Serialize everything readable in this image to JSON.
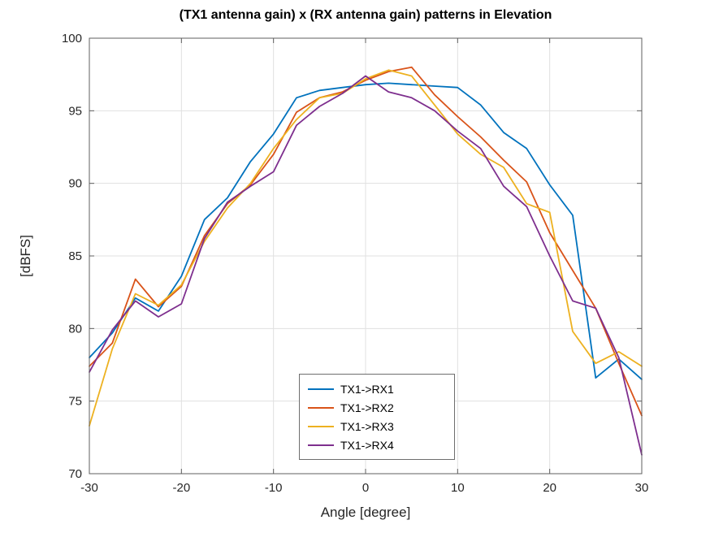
{
  "chart_data": {
    "type": "line",
    "title": "(TX1 antenna gain) x (RX antenna gain) patterns in Elevation",
    "xlabel": "Angle [degree]",
    "ylabel": "[dBFS]",
    "xlim": [
      -30,
      30
    ],
    "ylim": [
      70,
      100
    ],
    "xticks": [
      -30,
      -20,
      -10,
      0,
      10,
      20,
      30
    ],
    "yticks": [
      70,
      75,
      80,
      85,
      90,
      95,
      100
    ],
    "grid": true,
    "legend_position": "inside-bottom-center",
    "x": [
      -30,
      -27.5,
      -25,
      -22.5,
      -20,
      -17.5,
      -15,
      -12.5,
      -10,
      -7.5,
      -5,
      -2.5,
      0,
      2.5,
      5,
      7.5,
      10,
      12.5,
      15,
      17.5,
      20,
      22.5,
      25,
      27.5,
      30
    ],
    "series": [
      {
        "name": "TX1->RX1",
        "color": "#0072BD",
        "values": [
          78.0,
          79.7,
          82.1,
          81.2,
          83.6,
          87.5,
          89.0,
          91.5,
          93.4,
          95.9,
          96.4,
          96.6,
          96.8,
          96.9,
          96.8,
          96.7,
          96.6,
          95.4,
          93.5,
          92.4,
          89.9,
          87.8,
          76.6,
          77.9,
          76.5
        ]
      },
      {
        "name": "TX1->RX2",
        "color": "#D95319",
        "values": [
          77.4,
          79.0,
          83.4,
          81.5,
          82.9,
          86.4,
          88.6,
          89.9,
          92.0,
          94.9,
          95.9,
          96.3,
          97.1,
          97.7,
          98.0,
          96.1,
          94.6,
          93.2,
          91.6,
          90.1,
          86.6,
          84.0,
          81.4,
          77.6,
          74.0
        ]
      },
      {
        "name": "TX1->RX3",
        "color": "#EDB120",
        "values": [
          73.3,
          78.6,
          82.4,
          81.6,
          83.0,
          86.0,
          88.3,
          90.0,
          92.4,
          94.4,
          95.9,
          96.2,
          97.2,
          97.8,
          97.4,
          95.4,
          93.4,
          92.0,
          91.1,
          88.6,
          88.0,
          79.8,
          77.6,
          78.4,
          77.4
        ]
      },
      {
        "name": "TX1->RX4",
        "color": "#7E2F8E",
        "values": [
          77.0,
          79.9,
          81.9,
          80.8,
          81.7,
          86.2,
          88.7,
          89.8,
          90.8,
          94.0,
          95.3,
          96.2,
          97.4,
          96.3,
          95.9,
          95.0,
          93.6,
          92.4,
          89.8,
          88.4,
          85.0,
          81.9,
          81.4,
          78.0,
          71.3
        ]
      }
    ]
  },
  "colors": {
    "background": "#ffffff",
    "axis": "#5f5f5f",
    "grid": "#e0e0e0",
    "tick_label": "#262626"
  }
}
